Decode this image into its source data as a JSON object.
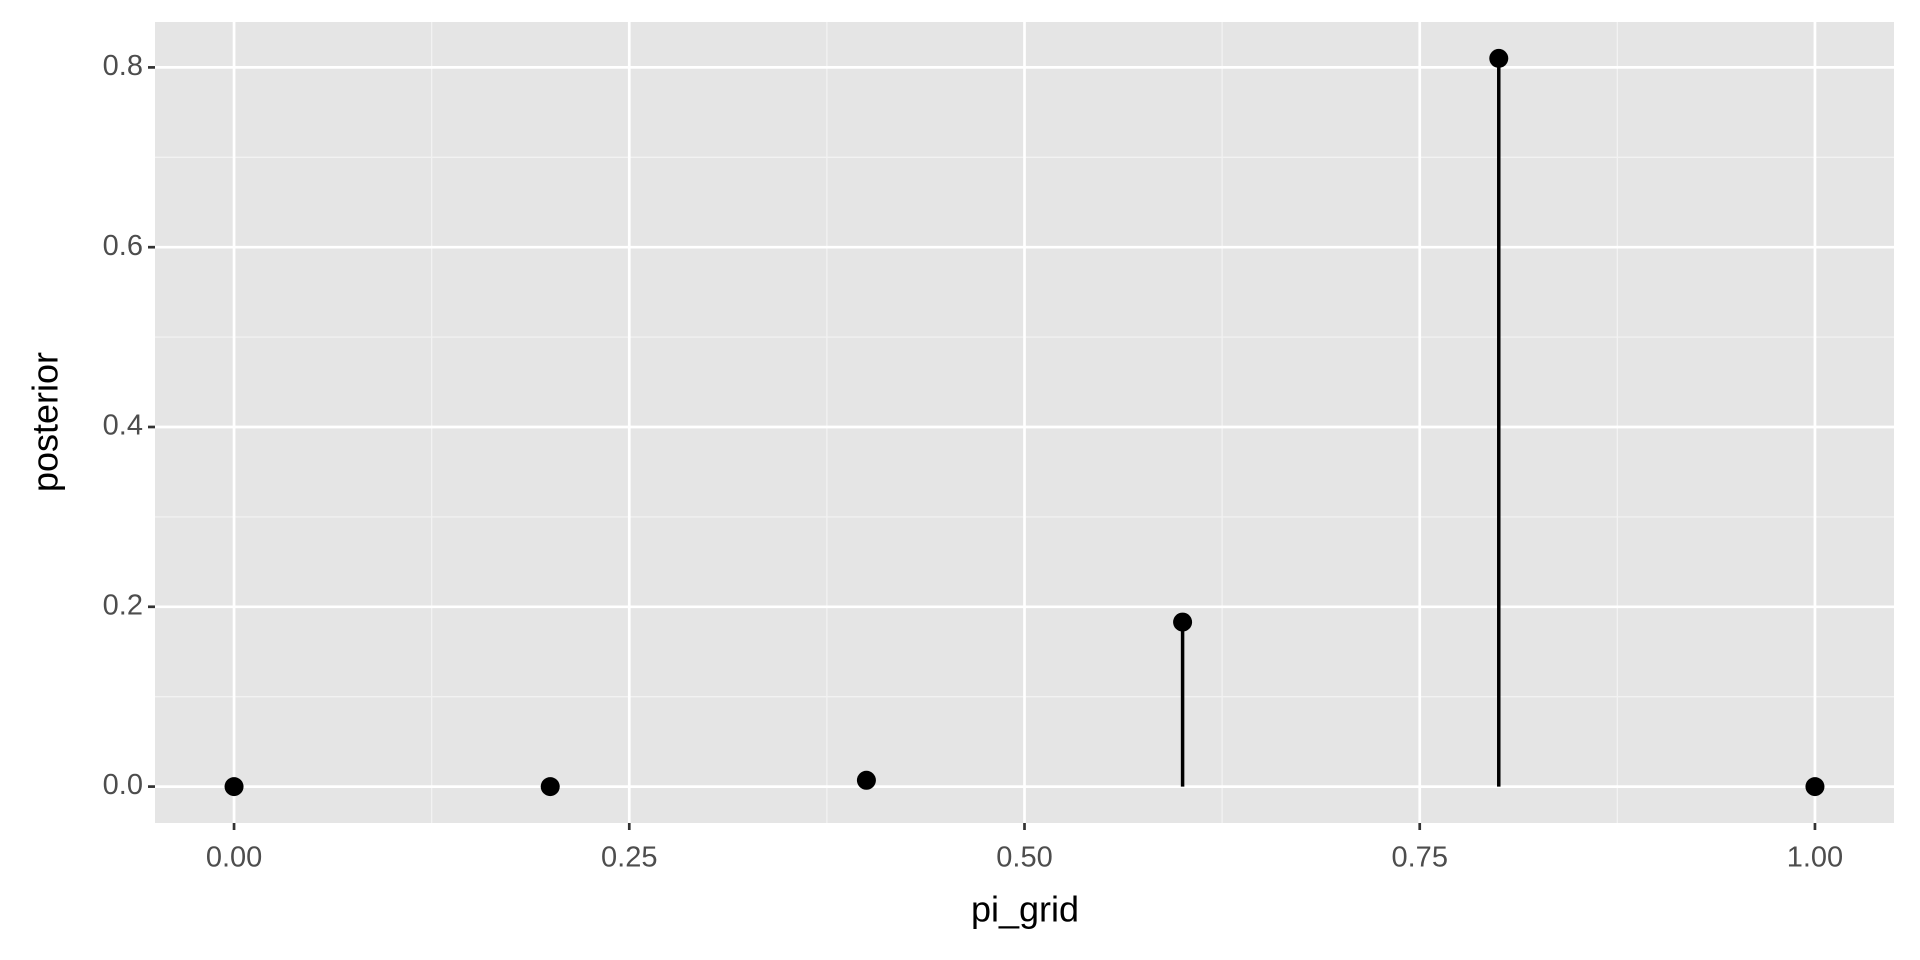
{
  "chart_data": {
    "type": "lollipop",
    "x_label": "pi_grid",
    "y_label": "posterior",
    "x": [
      0,
      0.2,
      0.4,
      0.6,
      0.8,
      1
    ],
    "values": [
      0,
      0,
      0.007,
      0.183,
      0.81,
      0
    ],
    "color": "#000000",
    "xlim": [
      -0.05,
      1.05
    ],
    "ylim": [
      -0.0405,
      0.8505
    ],
    "xticks": [
      {
        "value": 0,
        "label": "0.00"
      },
      {
        "value": 0.25,
        "label": "0.25"
      },
      {
        "value": 0.5,
        "label": "0.50"
      },
      {
        "value": 0.75,
        "label": "0.75"
      },
      {
        "value": 1,
        "label": "1.00"
      }
    ],
    "yticks": [
      {
        "value": 0,
        "label": "0.0"
      },
      {
        "value": 0.2,
        "label": "0.2"
      },
      {
        "value": 0.4,
        "label": "0.4"
      },
      {
        "value": 0.6,
        "label": "0.6"
      },
      {
        "value": 0.8,
        "label": "0.8"
      }
    ],
    "x_minor_grid": [
      0.125,
      0.375,
      0.625,
      0.875
    ],
    "y_minor_grid": [
      0.1,
      0.3,
      0.5,
      0.7
    ],
    "grid": true
  }
}
